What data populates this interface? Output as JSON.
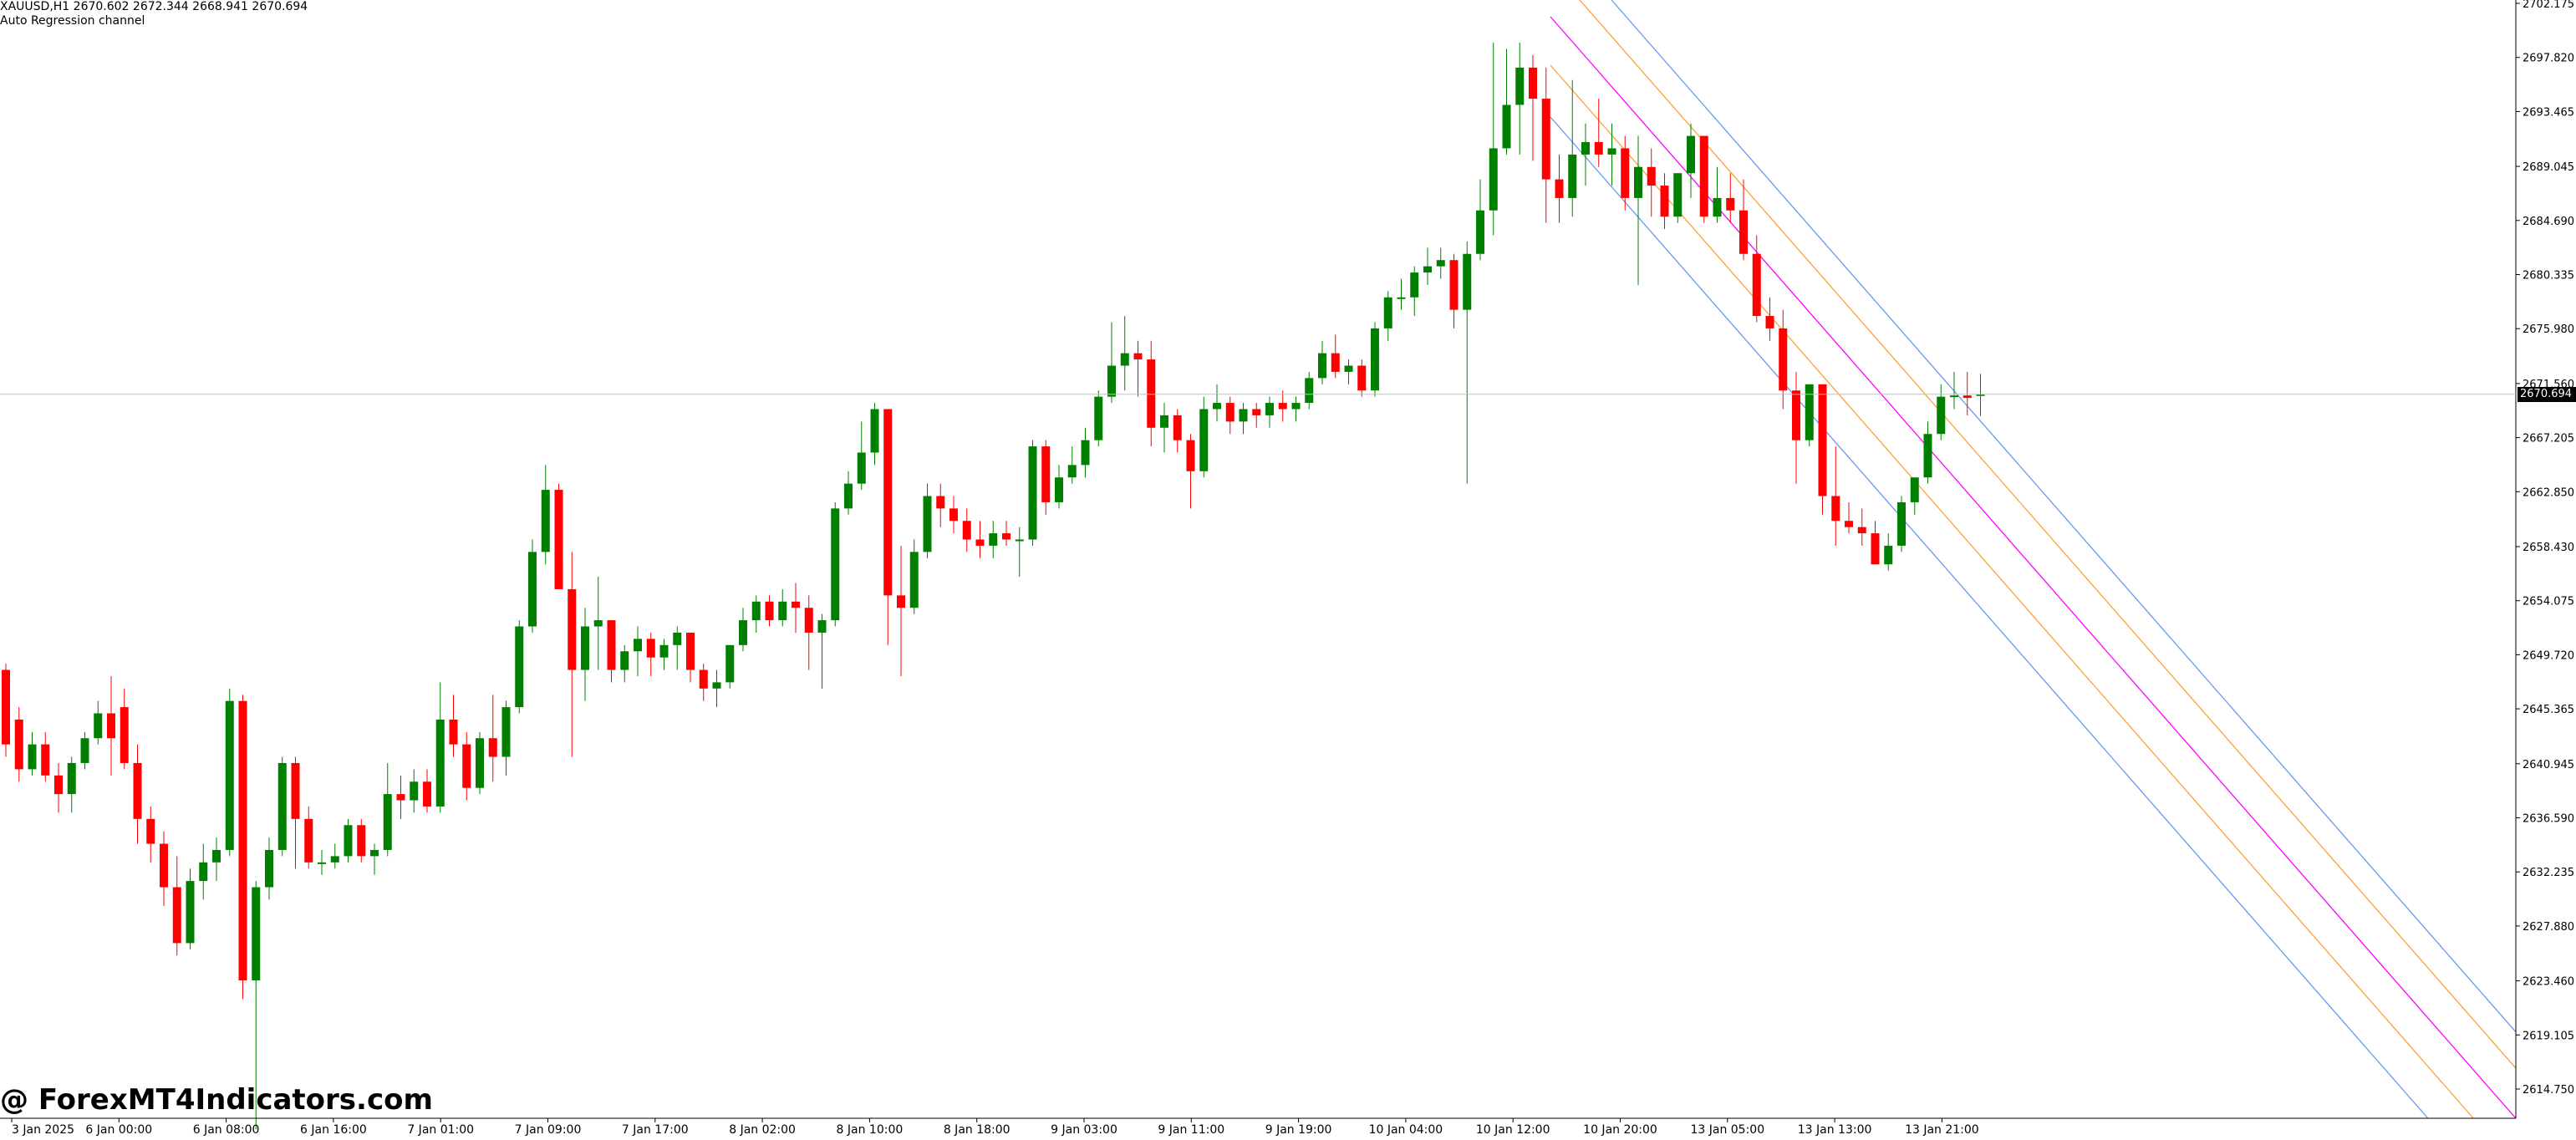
{
  "header": {
    "symbol_line": "XAUUSD,H1  2670.602 2672.344 2668.941 2670.694",
    "indicator_name": "Auto Regression channel"
  },
  "watermark": "@ ForexMT4Indicators.com",
  "current_price_label": "2670.694",
  "colors": {
    "bull": "#008000",
    "bear": "#ff0000",
    "channel_outer": "#6699ee",
    "channel_inner": "#ffa033",
    "channel_center": "#ff00ff",
    "grid_line": "#c0c0c0",
    "axis": "#000000"
  },
  "chart_data": {
    "type": "candlestick",
    "symbol": "XAUUSD",
    "timeframe": "H1",
    "ylim": [
      2610.0,
      2702.175
    ],
    "y_ticks": [
      "2702.175",
      "2697.820",
      "2693.465",
      "2689.045",
      "2684.690",
      "2680.335",
      "2675.980",
      "2671.560",
      "2667.205",
      "2662.850",
      "2658.430",
      "2654.075",
      "2649.720",
      "2645.365",
      "2640.945",
      "2636.590",
      "2632.235",
      "2627.880",
      "2623.460",
      "2619.105",
      "2614.750"
    ],
    "x_ticks": [
      "3 Jan 2025",
      "6 Jan 00:00",
      "6 Jan 08:00",
      "6 Jan 16:00",
      "7 Jan 01:00",
      "7 Jan 09:00",
      "7 Jan 17:00",
      "8 Jan 02:00",
      "8 Jan 10:00",
      "8 Jan 18:00",
      "9 Jan 03:00",
      "9 Jan 11:00",
      "9 Jan 19:00",
      "10 Jan 04:00",
      "10 Jan 12:00",
      "10 Jan 20:00",
      "13 Jan 05:00",
      "13 Jan 13:00",
      "13 Jan 21:00"
    ],
    "current_price": 2670.694,
    "candles": [
      [
        2648.5,
        2649.0,
        2641.5,
        2642.5
      ],
      [
        2644.5,
        2645.5,
        2639.5,
        2640.5
      ],
      [
        2640.5,
        2643.5,
        2640.0,
        2642.5
      ],
      [
        2642.5,
        2643.5,
        2639.5,
        2640.0
      ],
      [
        2640.0,
        2641.0,
        2637.0,
        2638.5
      ],
      [
        2638.5,
        2641.5,
        2637.0,
        2641.0
      ],
      [
        2641.0,
        2643.5,
        2640.5,
        2643.0
      ],
      [
        2643.0,
        2646.0,
        2642.5,
        2645.0
      ],
      [
        2645.0,
        2648.0,
        2640.0,
        2643.0
      ],
      [
        2645.5,
        2647.0,
        2640.5,
        2641.0
      ],
      [
        2641.0,
        2642.5,
        2634.5,
        2636.5
      ],
      [
        2636.5,
        2637.5,
        2633.0,
        2634.5
      ],
      [
        2634.5,
        2635.5,
        2629.5,
        2631.0
      ],
      [
        2631.0,
        2633.5,
        2625.5,
        2626.5
      ],
      [
        2626.5,
        2632.5,
        2626.0,
        2631.5
      ],
      [
        2631.5,
        2634.5,
        2630.0,
        2633.0
      ],
      [
        2633.0,
        2635.0,
        2631.5,
        2634.0
      ],
      [
        2634.0,
        2647.0,
        2633.5,
        2646.0
      ],
      [
        2646.0,
        2646.5,
        2622.0,
        2623.5
      ],
      [
        2623.5,
        2631.5,
        2611.5,
        2631.0
      ],
      [
        2631.0,
        2635.0,
        2630.0,
        2634.0
      ],
      [
        2634.0,
        2641.5,
        2633.5,
        2641.0
      ],
      [
        2641.0,
        2641.5,
        2632.5,
        2636.5
      ],
      [
        2636.5,
        2637.5,
        2632.5,
        2633.0
      ],
      [
        2633.0,
        2634.0,
        2632.0,
        2633.0
      ],
      [
        2633.0,
        2634.5,
        2632.5,
        2633.5
      ],
      [
        2633.5,
        2636.5,
        2633.0,
        2636.0
      ],
      [
        2636.0,
        2636.5,
        2633.0,
        2633.5
      ],
      [
        2633.5,
        2634.5,
        2632.0,
        2634.0
      ],
      [
        2634.0,
        2641.0,
        2633.5,
        2638.5
      ],
      [
        2638.5,
        2640.0,
        2636.5,
        2638.0
      ],
      [
        2638.0,
        2640.5,
        2637.0,
        2639.5
      ],
      [
        2639.5,
        2640.5,
        2637.0,
        2637.5
      ],
      [
        2637.5,
        2647.5,
        2637.0,
        2644.5
      ],
      [
        2644.5,
        2646.5,
        2641.5,
        2642.5
      ],
      [
        2642.5,
        2643.5,
        2638.0,
        2639.0
      ],
      [
        2639.0,
        2643.5,
        2638.5,
        2643.0
      ],
      [
        2643.0,
        2646.5,
        2639.5,
        2641.5
      ],
      [
        2641.5,
        2646.0,
        2640.0,
        2645.5
      ],
      [
        2645.5,
        2652.5,
        2645.0,
        2652.0
      ],
      [
        2652.0,
        2659.0,
        2651.5,
        2658.0
      ],
      [
        2658.0,
        2665.0,
        2657.0,
        2663.0
      ],
      [
        2663.0,
        2663.5,
        2655.0,
        2655.0
      ],
      [
        2655.0,
        2658.0,
        2641.5,
        2648.5
      ],
      [
        2648.5,
        2653.5,
        2646.0,
        2652.0
      ],
      [
        2652.0,
        2656.0,
        2648.5,
        2652.5
      ],
      [
        2652.5,
        2652.5,
        2647.5,
        2648.5
      ],
      [
        2648.5,
        2650.5,
        2647.5,
        2650.0
      ],
      [
        2650.0,
        2652.0,
        2648.0,
        2651.0
      ],
      [
        2651.0,
        2651.5,
        2648.0,
        2649.5
      ],
      [
        2649.5,
        2651.0,
        2648.5,
        2650.5
      ],
      [
        2650.5,
        2652.0,
        2648.5,
        2651.5
      ],
      [
        2651.5,
        2651.5,
        2647.5,
        2648.5
      ],
      [
        2648.5,
        2649.0,
        2646.0,
        2647.0
      ],
      [
        2647.0,
        2648.5,
        2645.5,
        2647.5
      ],
      [
        2647.5,
        2650.5,
        2647.0,
        2650.5
      ],
      [
        2650.5,
        2653.5,
        2650.0,
        2652.5
      ],
      [
        2652.5,
        2654.5,
        2651.5,
        2654.0
      ],
      [
        2654.0,
        2654.5,
        2652.0,
        2652.5
      ],
      [
        2652.5,
        2655.0,
        2652.0,
        2654.0
      ],
      [
        2654.0,
        2655.5,
        2651.5,
        2653.5
      ],
      [
        2653.5,
        2654.5,
        2648.5,
        2651.5
      ],
      [
        2651.5,
        2653.0,
        2647.0,
        2652.5
      ],
      [
        2652.5,
        2662.0,
        2652.0,
        2661.5
      ],
      [
        2661.5,
        2664.5,
        2661.0,
        2663.5
      ],
      [
        2663.5,
        2668.5,
        2663.0,
        2666.0
      ],
      [
        2666.0,
        2670.0,
        2665.0,
        2669.5
      ],
      [
        2669.5,
        2669.5,
        2650.5,
        2654.5
      ],
      [
        2654.5,
        2658.5,
        2648.0,
        2653.5
      ],
      [
        2653.5,
        2659.0,
        2653.0,
        2658.0
      ],
      [
        2658.0,
        2663.5,
        2657.5,
        2662.5
      ],
      [
        2662.5,
        2663.5,
        2660.0,
        2661.5
      ],
      [
        2661.5,
        2662.5,
        2659.5,
        2660.5
      ],
      [
        2660.5,
        2661.5,
        2658.0,
        2659.0
      ],
      [
        2659.0,
        2660.5,
        2657.5,
        2658.5
      ],
      [
        2658.5,
        2660.5,
        2657.5,
        2659.5
      ],
      [
        2659.5,
        2660.5,
        2658.5,
        2659.0
      ],
      [
        2659.0,
        2660.0,
        2656.0,
        2659.0
      ],
      [
        2659.0,
        2667.0,
        2658.5,
        2666.5
      ],
      [
        2666.5,
        2667.0,
        2661.0,
        2662.0
      ],
      [
        2662.0,
        2665.0,
        2661.5,
        2664.0
      ],
      [
        2664.0,
        2666.5,
        2663.5,
        2665.0
      ],
      [
        2665.0,
        2668.0,
        2664.0,
        2667.0
      ],
      [
        2667.0,
        2671.0,
        2666.5,
        2670.5
      ],
      [
        2670.5,
        2676.5,
        2670.0,
        2673.0
      ],
      [
        2673.0,
        2677.0,
        2671.0,
        2674.0
      ],
      [
        2674.0,
        2675.0,
        2670.5,
        2673.5
      ],
      [
        2673.5,
        2675.0,
        2666.5,
        2668.0
      ],
      [
        2668.0,
        2670.0,
        2666.0,
        2669.0
      ],
      [
        2669.0,
        2669.5,
        2666.0,
        2667.0
      ],
      [
        2667.0,
        2667.5,
        2661.5,
        2664.5
      ],
      [
        2664.5,
        2670.5,
        2664.0,
        2669.5
      ],
      [
        2669.5,
        2671.5,
        2668.5,
        2670.0
      ],
      [
        2670.0,
        2670.5,
        2667.5,
        2668.5
      ],
      [
        2668.5,
        2670.0,
        2667.5,
        2669.5
      ],
      [
        2669.5,
        2670.0,
        2668.0,
        2669.0
      ],
      [
        2669.0,
        2670.5,
        2668.0,
        2670.0
      ],
      [
        2670.0,
        2671.0,
        2668.5,
        2669.5
      ],
      [
        2669.5,
        2670.5,
        2668.5,
        2670.0
      ],
      [
        2670.0,
        2672.5,
        2669.5,
        2672.0
      ],
      [
        2672.0,
        2675.0,
        2671.5,
        2674.0
      ],
      [
        2674.0,
        2675.5,
        2672.0,
        2672.5
      ],
      [
        2672.5,
        2673.5,
        2671.5,
        2673.0
      ],
      [
        2673.0,
        2673.5,
        2670.5,
        2671.0
      ],
      [
        2671.0,
        2676.5,
        2670.5,
        2676.0
      ],
      [
        2676.0,
        2679.0,
        2675.0,
        2678.5
      ],
      [
        2678.5,
        2680.0,
        2677.5,
        2678.5
      ],
      [
        2678.5,
        2681.0,
        2677.0,
        2680.5
      ],
      [
        2680.5,
        2682.5,
        2679.5,
        2681.0
      ],
      [
        2681.0,
        2682.5,
        2680.0,
        2681.5
      ],
      [
        2681.5,
        2682.0,
        2676.0,
        2677.5
      ],
      [
        2677.5,
        2683.0,
        2663.5,
        2682.0
      ],
      [
        2682.0,
        2688.0,
        2681.5,
        2685.5
      ],
      [
        2685.5,
        2699.0,
        2683.5,
        2690.5
      ],
      [
        2690.5,
        2698.5,
        2690.0,
        2694.0
      ],
      [
        2694.0,
        2699.0,
        2690.0,
        2697.0
      ],
      [
        2697.0,
        2698.0,
        2689.5,
        2694.5
      ],
      [
        2694.5,
        2697.0,
        2684.5,
        2688.0
      ],
      [
        2688.0,
        2690.0,
        2684.5,
        2686.5
      ],
      [
        2686.5,
        2696.0,
        2685.0,
        2690.0
      ],
      [
        2690.0,
        2692.5,
        2687.5,
        2691.0
      ],
      [
        2691.0,
        2694.5,
        2689.0,
        2690.0
      ],
      [
        2690.0,
        2692.5,
        2687.5,
        2690.5
      ],
      [
        2690.5,
        2691.5,
        2685.5,
        2686.5
      ],
      [
        2686.5,
        2691.5,
        2679.5,
        2689.0
      ],
      [
        2689.0,
        2690.5,
        2685.0,
        2687.5
      ],
      [
        2687.5,
        2688.5,
        2684.0,
        2685.0
      ],
      [
        2685.0,
        2688.5,
        2684.5,
        2688.5
      ],
      [
        2688.5,
        2692.5,
        2686.5,
        2691.5
      ],
      [
        2691.5,
        2691.5,
        2684.5,
        2685.0
      ],
      [
        2685.0,
        2689.0,
        2684.5,
        2686.5
      ],
      [
        2686.5,
        2688.5,
        2684.5,
        2685.5
      ],
      [
        2685.5,
        2688.0,
        2681.5,
        2682.0
      ],
      [
        2682.0,
        2683.5,
        2676.5,
        2677.0
      ],
      [
        2677.0,
        2678.5,
        2675.0,
        2676.0
      ],
      [
        2676.0,
        2677.5,
        2669.5,
        2671.0
      ],
      [
        2671.0,
        2672.5,
        2663.5,
        2667.0
      ],
      [
        2667.0,
        2671.5,
        2666.5,
        2671.5
      ],
      [
        2671.5,
        2671.5,
        2661.0,
        2662.5
      ],
      [
        2662.5,
        2666.5,
        2658.5,
        2660.5
      ],
      [
        2660.5,
        2662.0,
        2659.5,
        2660.0
      ],
      [
        2660.0,
        2661.5,
        2658.5,
        2659.5
      ],
      [
        2659.5,
        2660.5,
        2657.0,
        2657.0
      ],
      [
        2657.0,
        2659.5,
        2656.5,
        2658.5
      ],
      [
        2658.5,
        2662.5,
        2658.0,
        2662.0
      ],
      [
        2662.0,
        2663.5,
        2661.0,
        2664.0
      ],
      [
        2664.0,
        2668.5,
        2663.5,
        2667.5
      ],
      [
        2667.5,
        2671.5,
        2667.0,
        2670.5
      ],
      [
        2670.5,
        2672.5,
        2669.5,
        2670.6
      ],
      [
        2670.6,
        2672.5,
        2669.0,
        2670.4
      ],
      [
        2670.602,
        2672.344,
        2668.941,
        2670.694
      ]
    ]
  }
}
